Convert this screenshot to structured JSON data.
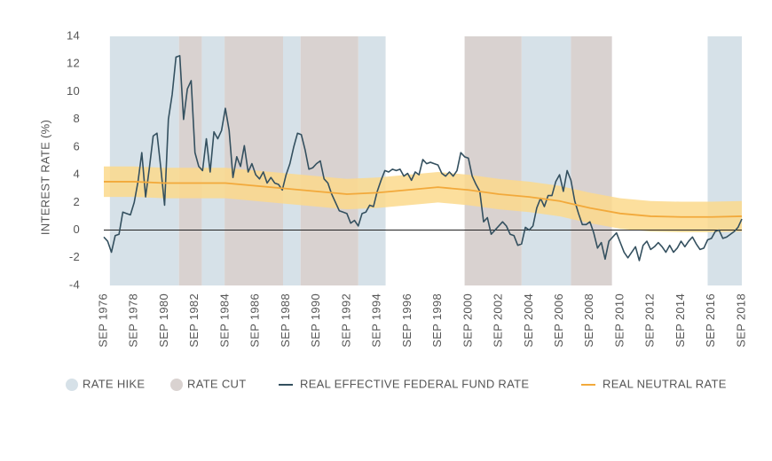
{
  "chart_data": {
    "type": "line",
    "y_label": "INTEREST RATE (%)",
    "xlim": [
      1976.75,
      2018.75
    ],
    "ylim": [
      -4,
      14
    ],
    "yticks": [
      -4,
      -2,
      0,
      2,
      4,
      6,
      8,
      10,
      12,
      14
    ],
    "xticks": [
      {
        "value": 1976.75,
        "label": "SEP 1976"
      },
      {
        "value": 1978.75,
        "label": "SEP 1978"
      },
      {
        "value": 1980.75,
        "label": "SEP 1980"
      },
      {
        "value": 1982.75,
        "label": "SEP 1982"
      },
      {
        "value": 1984.75,
        "label": "SEP 1984"
      },
      {
        "value": 1986.75,
        "label": "SEP 1986"
      },
      {
        "value": 1988.75,
        "label": "SEP 1988"
      },
      {
        "value": 1990.75,
        "label": "SEP 1990"
      },
      {
        "value": 1992.75,
        "label": "SEP 1992"
      },
      {
        "value": 1994.75,
        "label": "SEP 1994"
      },
      {
        "value": 1996.75,
        "label": "SEP 1996"
      },
      {
        "value": 1998.75,
        "label": "SEP 1998"
      },
      {
        "value": 2000.75,
        "label": "SEP 2000"
      },
      {
        "value": 2002.75,
        "label": "SEP 2002"
      },
      {
        "value": 2004.75,
        "label": "SEP 2004"
      },
      {
        "value": 2006.75,
        "label": "SEP 2006"
      },
      {
        "value": 2008.75,
        "label": "SEP 2008"
      },
      {
        "value": 2010.75,
        "label": "SEP 2010"
      },
      {
        "value": 2012.75,
        "label": "SEP 2012"
      },
      {
        "value": 2014.75,
        "label": "SEP 2014"
      },
      {
        "value": 2016.75,
        "label": "SEP 2016"
      },
      {
        "value": 2018.75,
        "label": "SEP 2018"
      }
    ],
    "shading": [
      {
        "name": "RATE HIKE",
        "color": "#d6e1e8",
        "spans": [
          [
            1977.15,
            1981.7
          ],
          [
            1983.2,
            1984.7
          ],
          [
            1988.55,
            1989.7
          ],
          [
            1993.5,
            1995.3
          ],
          [
            2004.25,
            2007.5
          ],
          [
            2016.5,
            2018.75
          ]
        ]
      },
      {
        "name": "RATE CUT",
        "color": "#d9d2d0",
        "spans": [
          [
            1981.7,
            1983.2
          ],
          [
            1984.7,
            1988.55
          ],
          [
            1989.7,
            1993.5
          ],
          [
            2000.5,
            2004.25
          ],
          [
            2007.5,
            2010.2
          ]
        ]
      }
    ],
    "series": [
      {
        "name": "REAL EFFECTIVE FEDERAL FUND RATE",
        "color": "#34505f",
        "x": [
          1976.75,
          1977,
          1977.25,
          1977.5,
          1977.75,
          1978,
          1978.25,
          1978.5,
          1978.75,
          1979,
          1979.25,
          1979.5,
          1979.75,
          1980,
          1980.25,
          1980.5,
          1980.75,
          1981,
          1981.25,
          1981.5,
          1981.75,
          1982,
          1982.25,
          1982.5,
          1982.75,
          1983,
          1983.25,
          1983.5,
          1983.75,
          1984,
          1984.25,
          1984.5,
          1984.75,
          1985,
          1985.25,
          1985.5,
          1985.75,
          1986,
          1986.25,
          1986.5,
          1986.75,
          1987,
          1987.25,
          1987.5,
          1987.75,
          1988,
          1988.25,
          1988.5,
          1988.75,
          1989,
          1989.25,
          1989.5,
          1989.75,
          1990,
          1990.25,
          1990.5,
          1990.75,
          1991,
          1991.25,
          1991.5,
          1991.75,
          1992,
          1992.25,
          1992.5,
          1992.75,
          1993,
          1993.25,
          1993.5,
          1993.75,
          1994,
          1994.25,
          1994.5,
          1994.75,
          1995,
          1995.25,
          1995.5,
          1995.75,
          1996,
          1996.25,
          1996.5,
          1996.75,
          1997,
          1997.25,
          1997.5,
          1997.75,
          1998,
          1998.25,
          1998.5,
          1998.75,
          1999,
          1999.25,
          1999.5,
          1999.75,
          2000,
          2000.25,
          2000.5,
          2000.75,
          2001,
          2001.25,
          2001.5,
          2001.75,
          2002,
          2002.25,
          2002.5,
          2002.75,
          2003,
          2003.25,
          2003.5,
          2003.75,
          2004,
          2004.25,
          2004.5,
          2004.75,
          2005,
          2005.25,
          2005.5,
          2005.75,
          2006,
          2006.25,
          2006.5,
          2006.75,
          2007,
          2007.25,
          2007.5,
          2007.75,
          2008,
          2008.25,
          2008.5,
          2008.75,
          2009,
          2009.25,
          2009.5,
          2009.75,
          2010,
          2010.25,
          2010.5,
          2010.75,
          2011,
          2011.25,
          2011.5,
          2011.75,
          2012,
          2012.25,
          2012.5,
          2012.75,
          2013,
          2013.25,
          2013.5,
          2013.75,
          2014,
          2014.25,
          2014.5,
          2014.75,
          2015,
          2015.25,
          2015.5,
          2015.75,
          2016,
          2016.25,
          2016.5,
          2016.75,
          2017,
          2017.25,
          2017.5,
          2017.75,
          2018,
          2018.25,
          2018.5,
          2018.75
        ],
        "values": [
          -0.5,
          -0.8,
          -1.6,
          -0.4,
          -0.3,
          1.3,
          1.2,
          1.1,
          2.0,
          3.5,
          5.6,
          2.4,
          4.5,
          6.8,
          7.0,
          4.5,
          1.8,
          8.0,
          9.8,
          12.5,
          12.6,
          8.0,
          10.2,
          10.8,
          5.6,
          4.6,
          4.3,
          6.6,
          4.2,
          7.1,
          6.6,
          7.2,
          8.8,
          7.2,
          3.8,
          5.3,
          4.6,
          6.1,
          4.2,
          4.8,
          4.0,
          3.7,
          4.2,
          3.4,
          3.8,
          3.4,
          3.3,
          2.9,
          4.0,
          4.8,
          6.0,
          7.0,
          6.9,
          5.8,
          4.4,
          4.5,
          4.8,
          5.0,
          3.7,
          3.4,
          2.6,
          2.0,
          1.4,
          1.3,
          1.2,
          0.5,
          0.7,
          0.3,
          1.2,
          1.3,
          1.8,
          1.7,
          2.8,
          3.6,
          4.3,
          4.2,
          4.4,
          4.3,
          4.4,
          3.9,
          4.1,
          3.6,
          4.2,
          4.0,
          5.1,
          4.8,
          4.9,
          4.8,
          4.7,
          4.1,
          3.9,
          4.2,
          3.9,
          4.3,
          5.6,
          5.3,
          5.2,
          3.9,
          3.3,
          2.8,
          0.6,
          0.9,
          -0.3,
          0.0,
          0.3,
          0.6,
          0.3,
          -0.3,
          -0.4,
          -1.1,
          -1.0,
          0.2,
          0.0,
          0.3,
          1.6,
          2.3,
          1.7,
          2.5,
          2.5,
          3.5,
          4.0,
          2.8,
          4.3,
          3.6,
          2.1,
          1.2,
          0.4,
          0.4,
          0.6,
          -0.2,
          -1.3,
          -0.9,
          -2.1,
          -0.8,
          -0.5,
          -0.2,
          -0.9,
          -1.6,
          -2.0,
          -1.6,
          -1.2,
          -2.2,
          -1.1,
          -0.8,
          -1.4,
          -1.2,
          -0.9,
          -1.2,
          -1.6,
          -1.1,
          -1.6,
          -1.3,
          -0.8,
          -1.2,
          -0.8,
          -0.5,
          -1.0,
          -1.4,
          -1.3,
          -0.7,
          -0.6,
          -0.1,
          0.0,
          -0.6,
          -0.5,
          -0.3,
          -0.1,
          0.2,
          0.8
        ]
      },
      {
        "name": "REAL NEUTRAL RATE",
        "color": "#f2a93b",
        "band_color": "#fbd98c",
        "x": [
          1976.75,
          1978.75,
          1980.75,
          1982.75,
          1984.75,
          1986.75,
          1988.75,
          1990.75,
          1992.75,
          1994.75,
          1996.75,
          1998.75,
          2000.75,
          2002.75,
          2004.75,
          2006.75,
          2008.75,
          2010.75,
          2012.75,
          2014.75,
          2016.75,
          2018.75
        ],
        "values": [
          3.5,
          3.5,
          3.4,
          3.4,
          3.4,
          3.2,
          3.0,
          2.8,
          2.6,
          2.7,
          2.9,
          3.1,
          2.9,
          2.6,
          2.4,
          2.1,
          1.6,
          1.2,
          1.0,
          0.95,
          0.95,
          1.0
        ],
        "lower": [
          2.4,
          2.4,
          2.3,
          2.3,
          2.3,
          2.1,
          1.9,
          1.7,
          1.5,
          1.6,
          1.8,
          2.0,
          1.8,
          1.5,
          1.3,
          1.0,
          0.5,
          0.1,
          -0.1,
          -0.15,
          -0.15,
          -0.1
        ],
        "upper": [
          4.6,
          4.6,
          4.5,
          4.5,
          4.5,
          4.3,
          4.1,
          3.9,
          3.7,
          3.8,
          4.0,
          4.2,
          4.0,
          3.7,
          3.5,
          3.2,
          2.7,
          2.3,
          2.1,
          2.05,
          2.05,
          2.1
        ]
      }
    ]
  }
}
